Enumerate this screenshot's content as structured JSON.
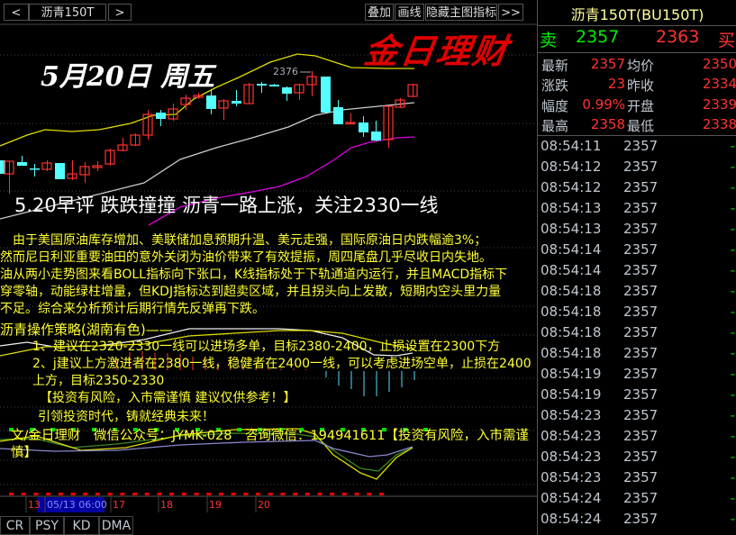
{
  "toolbar": {
    "prev": "<",
    "symbol": "沥青150T",
    "next": ">",
    "overlay": "叠加",
    "draw": "画线",
    "hide_indicators": "隐藏主图指标",
    "more": ">>"
  },
  "chart": {
    "date_title": "5月20日 周五",
    "high_label": "2376",
    "up_color": "#ff3333",
    "down_color": "#54ffff",
    "date_axis": [
      "13",
      "05/13 06:00",
      "17",
      "18",
      "19",
      "20"
    ]
  },
  "article": {
    "headline": "5.20早评 跌跌撞撞 沥青一路上涨，关注2330一线",
    "paragraph": [
      "　由于美国原油库存增加、美联储加息预期升温、美元走强，国际原油日内跌幅逾3%；",
      "然而尼日利亚重要油田的意外关闭为油价带来了有效提振，周四尾盘几乎尽收日内失地。",
      "油从两小走势图来看BOLL指标向下张口，K线指标处于下轨通道内运行，并且MACD指标下",
      "穿零轴，动能绿柱增量，但KDJ指标达到超卖区域，并且拐头向上发散，短期内空头里力量",
      "不足。综合来分析预计后期行情先反弹再下跌。"
    ],
    "strategy_title": "沥青操作策略(湖南有色)——",
    "strategy": [
      "1、建议在2320-2330一线可以进场多单，目标2380-2400，止损设置在2300下方",
      "2、j建议上方激进者在2380一线，稳健者在2400一线，可以考虑进场空单，止损在2400上方，目标2350-2330"
    ],
    "disclaimer": "【投资有风险，入市需谨慎 建议仅供参考！】",
    "slogan": "引领投资时代，铸就经典未来！",
    "footer": "文/金日理财　微信公众号：JYMK-028　咨询微信：194941611【投资有风险，入市需谨慎】",
    "watermark": "金日理财"
  },
  "indicator_tabs": [
    "CR",
    "PSY",
    "KD",
    "DMA"
  ],
  "quote": {
    "title": "沥青150T(BU150T)",
    "sell_label": "卖",
    "sell": "2357",
    "buy": "2363",
    "buy_label": "买",
    "stats": [
      {
        "l": "最新",
        "v": "2357",
        "l2": "均价",
        "v2": "2350"
      },
      {
        "l": "涨跌",
        "v": "23",
        "l2": "昨收",
        "v2": "2334"
      },
      {
        "l": "幅度",
        "v": "0.99%",
        "l2": "开盘",
        "v2": "2339"
      },
      {
        "l": "最高",
        "v": "2358",
        "l2": "最低",
        "v2": "2338"
      }
    ],
    "ticks": [
      {
        "t": "08:54:11",
        "p": "2357",
        "d": "-"
      },
      {
        "t": "08:54:12",
        "p": "2357",
        "d": "-"
      },
      {
        "t": "08:54:12",
        "p": "2357",
        "d": "-"
      },
      {
        "t": "08:54:13",
        "p": "2357",
        "d": "-"
      },
      {
        "t": "08:54:13",
        "p": "2357",
        "d": "-"
      },
      {
        "t": "08:54:14",
        "p": "2357",
        "d": "-"
      },
      {
        "t": "08:54:14",
        "p": "2357",
        "d": "-"
      },
      {
        "t": "08:54:18",
        "p": "2357",
        "d": "-"
      },
      {
        "t": "08:54:18",
        "p": "2357",
        "d": "-"
      },
      {
        "t": "08:54:18",
        "p": "2357",
        "d": "-"
      },
      {
        "t": "08:54:18",
        "p": "2357",
        "d": "-"
      },
      {
        "t": "08:54:19",
        "p": "2357",
        "d": "-"
      },
      {
        "t": "08:54:19",
        "p": "2357",
        "d": "-"
      },
      {
        "t": "08:54:23",
        "p": "2357",
        "d": "-"
      },
      {
        "t": "08:54:23",
        "p": "2357",
        "d": "-"
      },
      {
        "t": "08:54:23",
        "p": "2357",
        "d": "-"
      },
      {
        "t": "08:54:23",
        "p": "2357",
        "d": "-"
      },
      {
        "t": "08:54:24",
        "p": "2357",
        "d": "-"
      },
      {
        "t": "08:54:24",
        "p": "2357",
        "d": "-"
      }
    ]
  }
}
